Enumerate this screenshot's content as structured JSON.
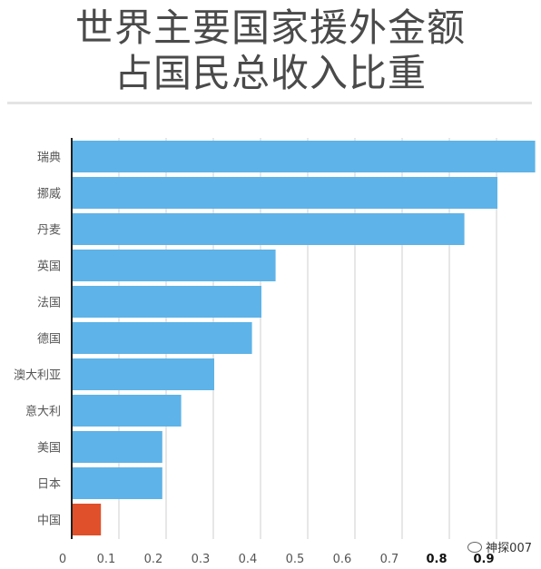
{
  "title_lines": [
    "世界主要国家援外金额",
    "占国民总收入比重"
  ],
  "watermark": "神探007",
  "chart_data": {
    "type": "bar",
    "orientation": "horizontal",
    "categories": [
      "瑞典",
      "挪威",
      "丹麦",
      "英国",
      "法国",
      "德国",
      "澳大利亚",
      "意大利",
      "美国",
      "日本",
      "中国"
    ],
    "values": [
      0.98,
      0.9,
      0.83,
      0.43,
      0.4,
      0.38,
      0.3,
      0.23,
      0.19,
      0.19,
      0.06
    ],
    "xticks": [
      "0",
      "0.1",
      "0.2",
      "0.3",
      "0.4",
      "0.5",
      "0.6",
      "0.7",
      "0.8",
      "0.9"
    ],
    "xlim": [
      0,
      0.98
    ],
    "grid": true,
    "colors": {
      "bar": "#5eb3e8",
      "highlight": "#e0502a",
      "grid": "#cfcfcf",
      "label": "#555555"
    },
    "highlight_category": "中国"
  }
}
